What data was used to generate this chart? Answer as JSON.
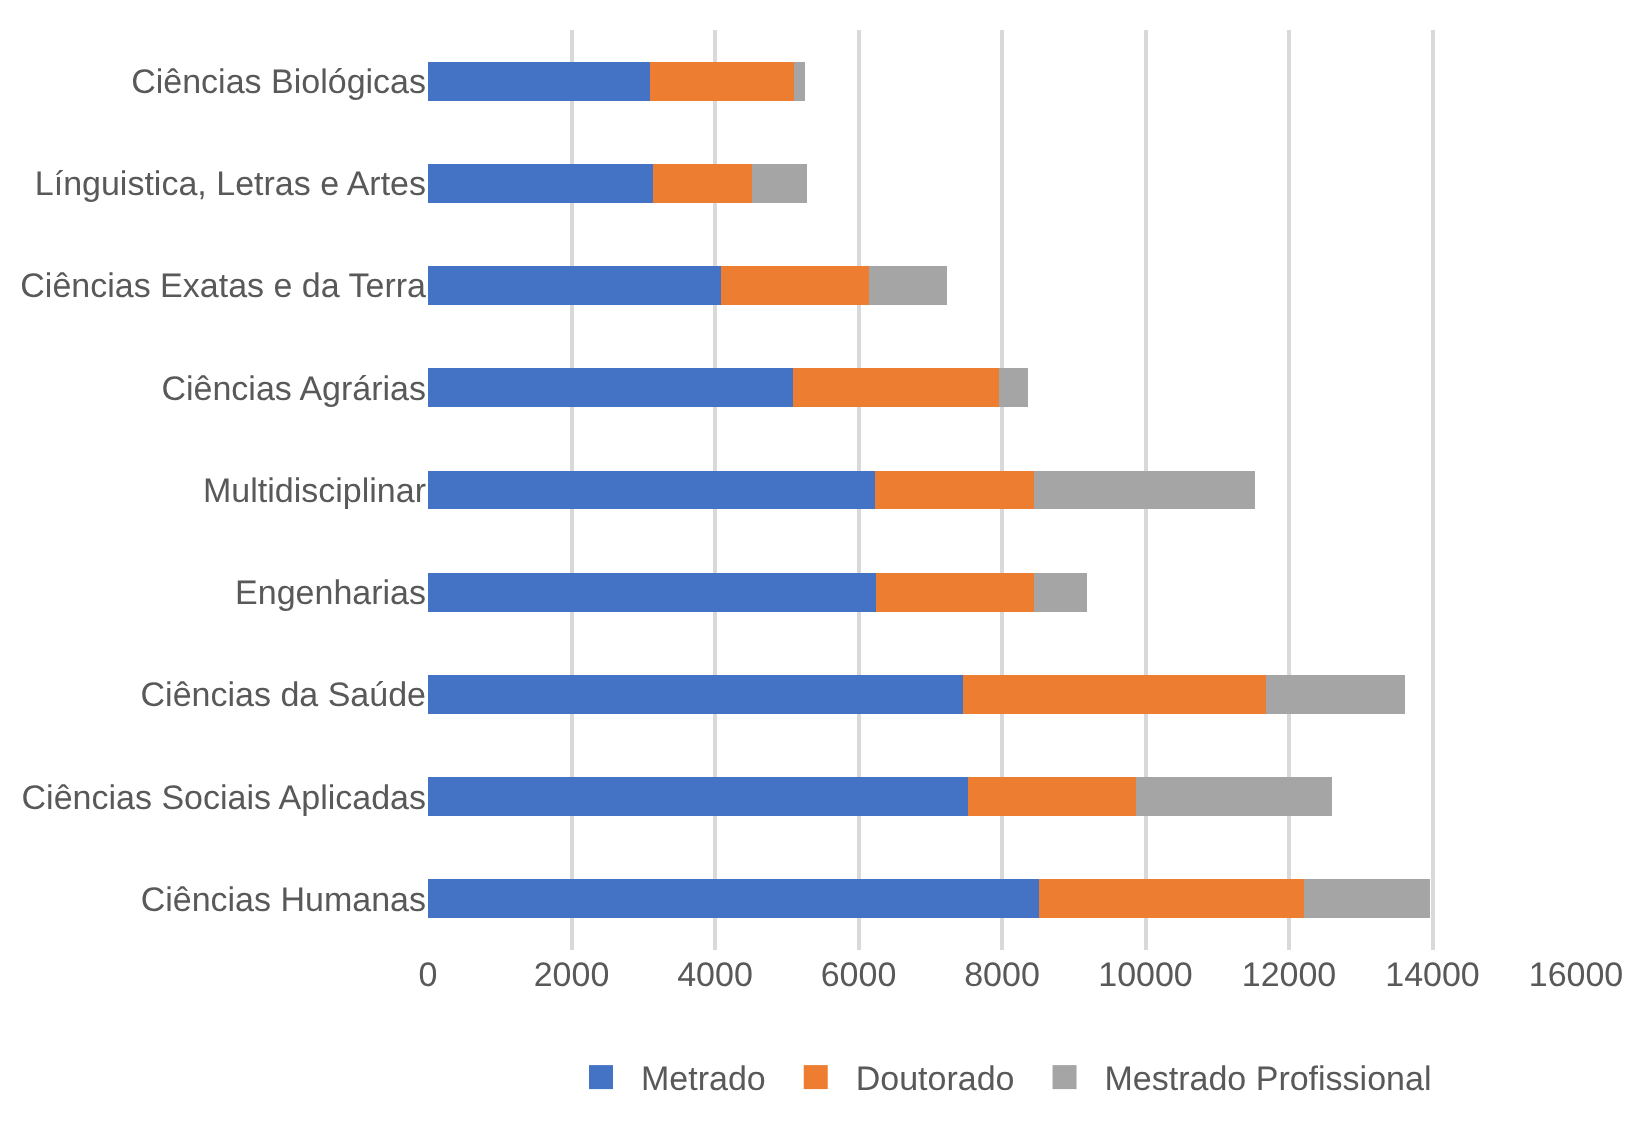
{
  "chart_data": {
    "type": "bar",
    "orientation": "horizontal",
    "stacked": true,
    "categories": [
      "Ciências Biológicas",
      "Línguistica, Letras e Artes",
      "Ciências Exatas e da Terra",
      "Ciências Agrárias",
      "Multidisciplinar",
      "Engenharias",
      "Ciências da Saúde",
      "Ciências Sociais Aplicadas",
      "Ciências Humanas"
    ],
    "series": [
      {
        "name": "Metrado",
        "color": "#4472c4",
        "values": [
          3100,
          3130,
          4090,
          5090,
          6230,
          6240,
          7450,
          7530,
          8510
        ]
      },
      {
        "name": "Doutorado",
        "color": "#ed7d31",
        "values": [
          2000,
          1390,
          2060,
          2870,
          2220,
          2200,
          4230,
          2340,
          3700
        ]
      },
      {
        "name": "Mestrado Profissional",
        "color": "#a5a5a5",
        "values": [
          150,
          760,
          1080,
          400,
          3080,
          750,
          1930,
          2730,
          1750
        ]
      }
    ],
    "xlim": [
      0,
      16000
    ],
    "xticks": [
      0,
      2000,
      4000,
      6000,
      8000,
      10000,
      12000,
      14000,
      16000
    ],
    "grid": "x",
    "legend": "bottom"
  }
}
